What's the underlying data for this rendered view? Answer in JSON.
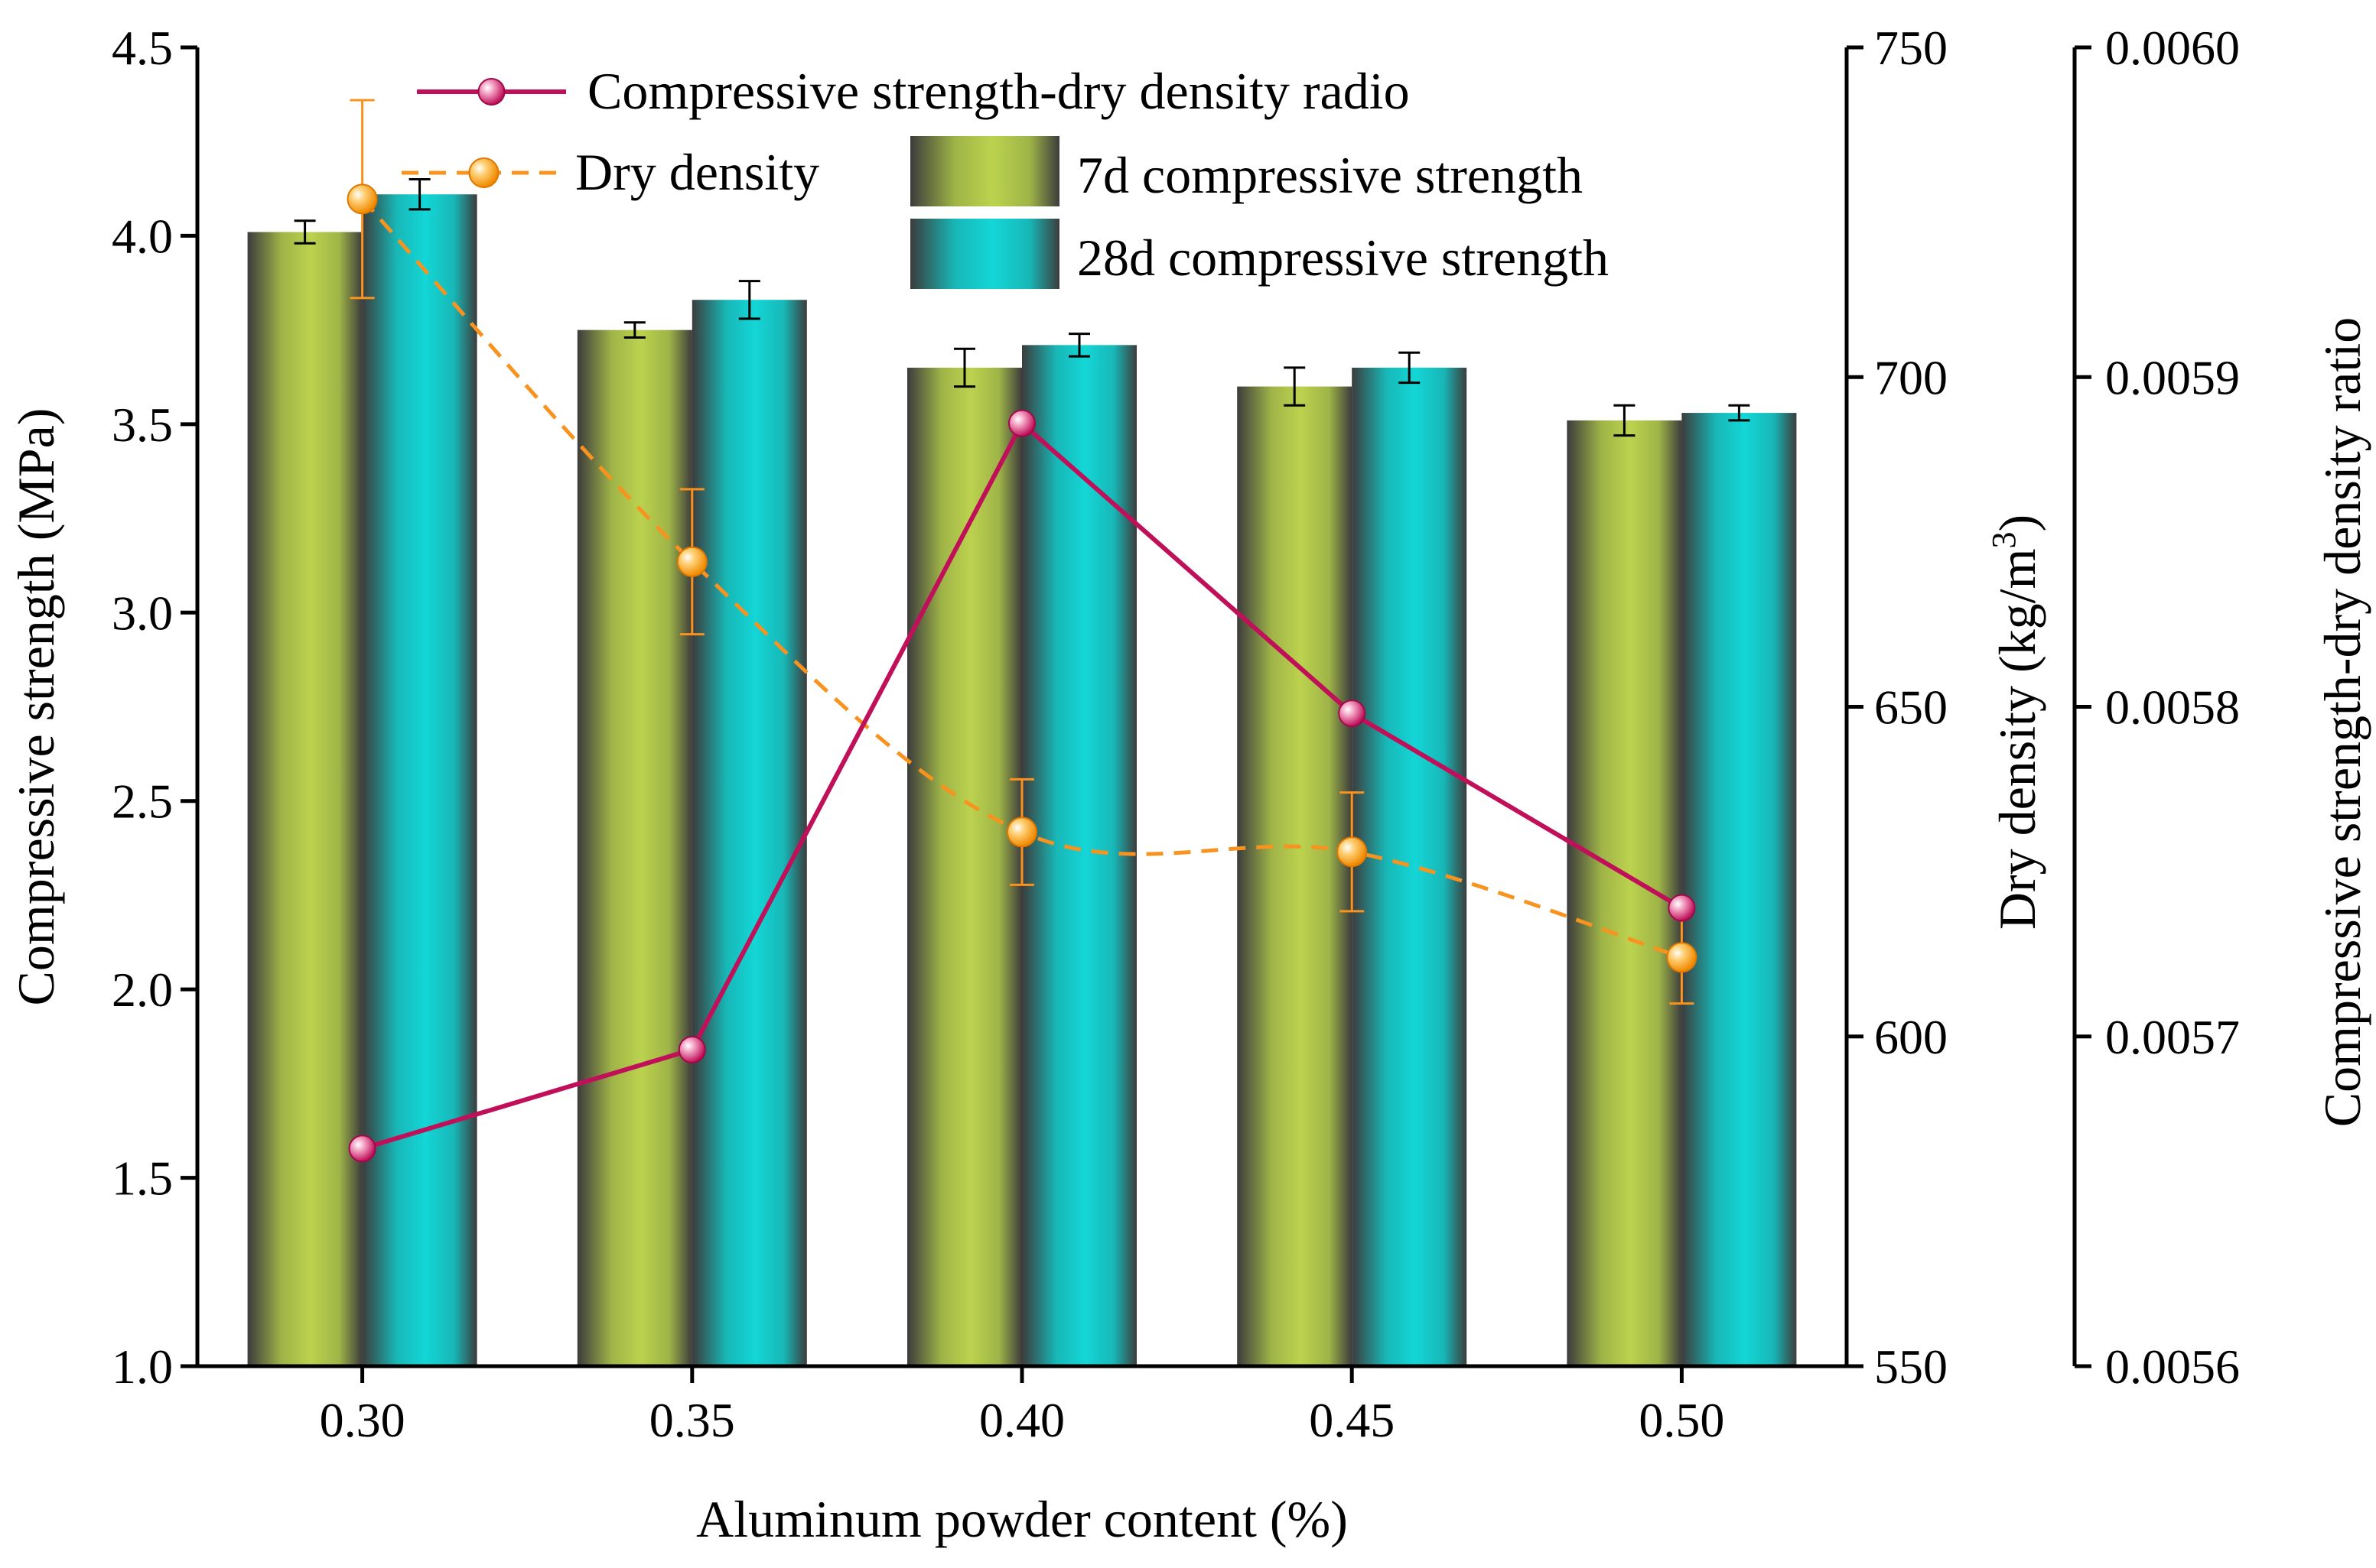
{
  "chart_data": {
    "type": "bar",
    "categories": [
      "0.30",
      "0.35",
      "0.40",
      "0.45",
      "0.50"
    ],
    "xlabel": "Aluminum powder content (%)",
    "axes": {
      "left": {
        "label": "Compressive strength (MPa)",
        "ylim": [
          1.0,
          4.5
        ],
        "ticks": [
          "1.0",
          "1.5",
          "2.0",
          "2.5",
          "3.0",
          "3.5",
          "4.0",
          "4.5"
        ]
      },
      "right1": {
        "label_main": "Dry density (kg/m",
        "label_sup": "3",
        "label_end": ")",
        "ylim": [
          550,
          750
        ],
        "ticks": [
          "550",
          "600",
          "650",
          "700",
          "750"
        ]
      },
      "right2": {
        "label": "Compressive strength-dry density ratio",
        "ylim": [
          0.0056,
          0.006
        ],
        "ticks": [
          "0.0056",
          "0.0057",
          "0.0058",
          "0.0059",
          "0.0060"
        ]
      }
    },
    "series": [
      {
        "name": "7d compressive strength",
        "kind": "bar",
        "axis": "left",
        "color": "#b5cc4a",
        "values": [
          4.01,
          3.75,
          3.65,
          3.6,
          3.51
        ],
        "errors": [
          0.03,
          0.02,
          0.05,
          0.05,
          0.04
        ]
      },
      {
        "name": "28d compressive strength",
        "kind": "bar",
        "axis": "left",
        "color": "#1ecfcf",
        "values": [
          4.11,
          3.83,
          3.71,
          3.65,
          3.53
        ],
        "errors": [
          0.04,
          0.05,
          0.03,
          0.04,
          0.02
        ]
      },
      {
        "name": "Dry density",
        "kind": "line",
        "style": "dashed",
        "axis": "right1",
        "color": "#f7931e",
        "values": [
          727,
          672,
          631,
          628,
          612
        ],
        "errors": [
          15,
          11,
          8,
          9,
          7
        ]
      },
      {
        "name": "Compressive strength-dry density radio",
        "kind": "line",
        "style": "solid",
        "axis": "right2",
        "color": "#c0105a",
        "values": [
          0.005666,
          0.005696,
          0.005886,
          0.005798,
          0.005739
        ],
        "errors": [
          0,
          0,
          0,
          0,
          0
        ]
      }
    ],
    "legend": [
      "Compressive strength-dry density radio",
      "Dry density",
      "7d compressive strength",
      "28d compressive strength"
    ]
  }
}
